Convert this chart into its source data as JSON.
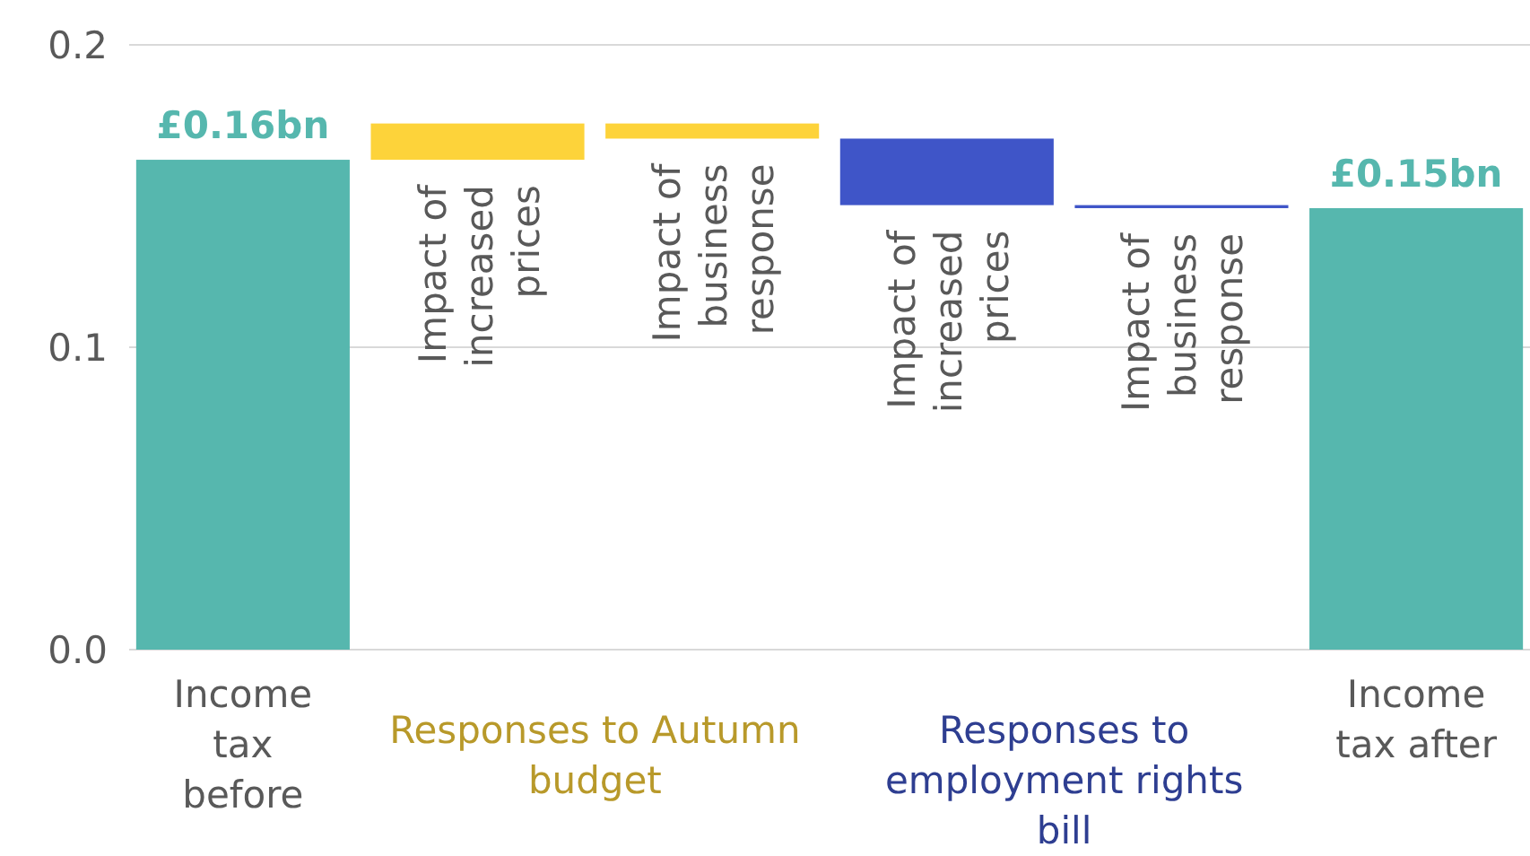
{
  "chart_data": {
    "type": "bar",
    "categories": [
      "Income tax before",
      "Impact of increased prices",
      "Impact of business response",
      "Impact of increased prices",
      "Impact of business response",
      "Income tax after"
    ],
    "values": [
      0.162,
      0.012,
      -0.005,
      -0.022,
      -0.001,
      0.146
    ],
    "base": [
      0,
      0.162,
      0.174,
      0.169,
      0.147,
      0
    ],
    "colors": [
      "#56b7ae",
      "#fdd33a",
      "#fdd33a",
      "#3f55c8",
      "#3f55c8",
      "#56b7ae"
    ],
    "value_labels": [
      "£0.16bn",
      null,
      null,
      null,
      null,
      "£0.15bn"
    ],
    "annotations": [
      "Responses to Autumn budget",
      "Responses to employment rights bill"
    ],
    "ylim": [
      0,
      0.2
    ],
    "yticks": [
      {
        "value": 0,
        "label": "0.0"
      },
      0.1,
      0.2
    ],
    "grid": "y"
  }
}
